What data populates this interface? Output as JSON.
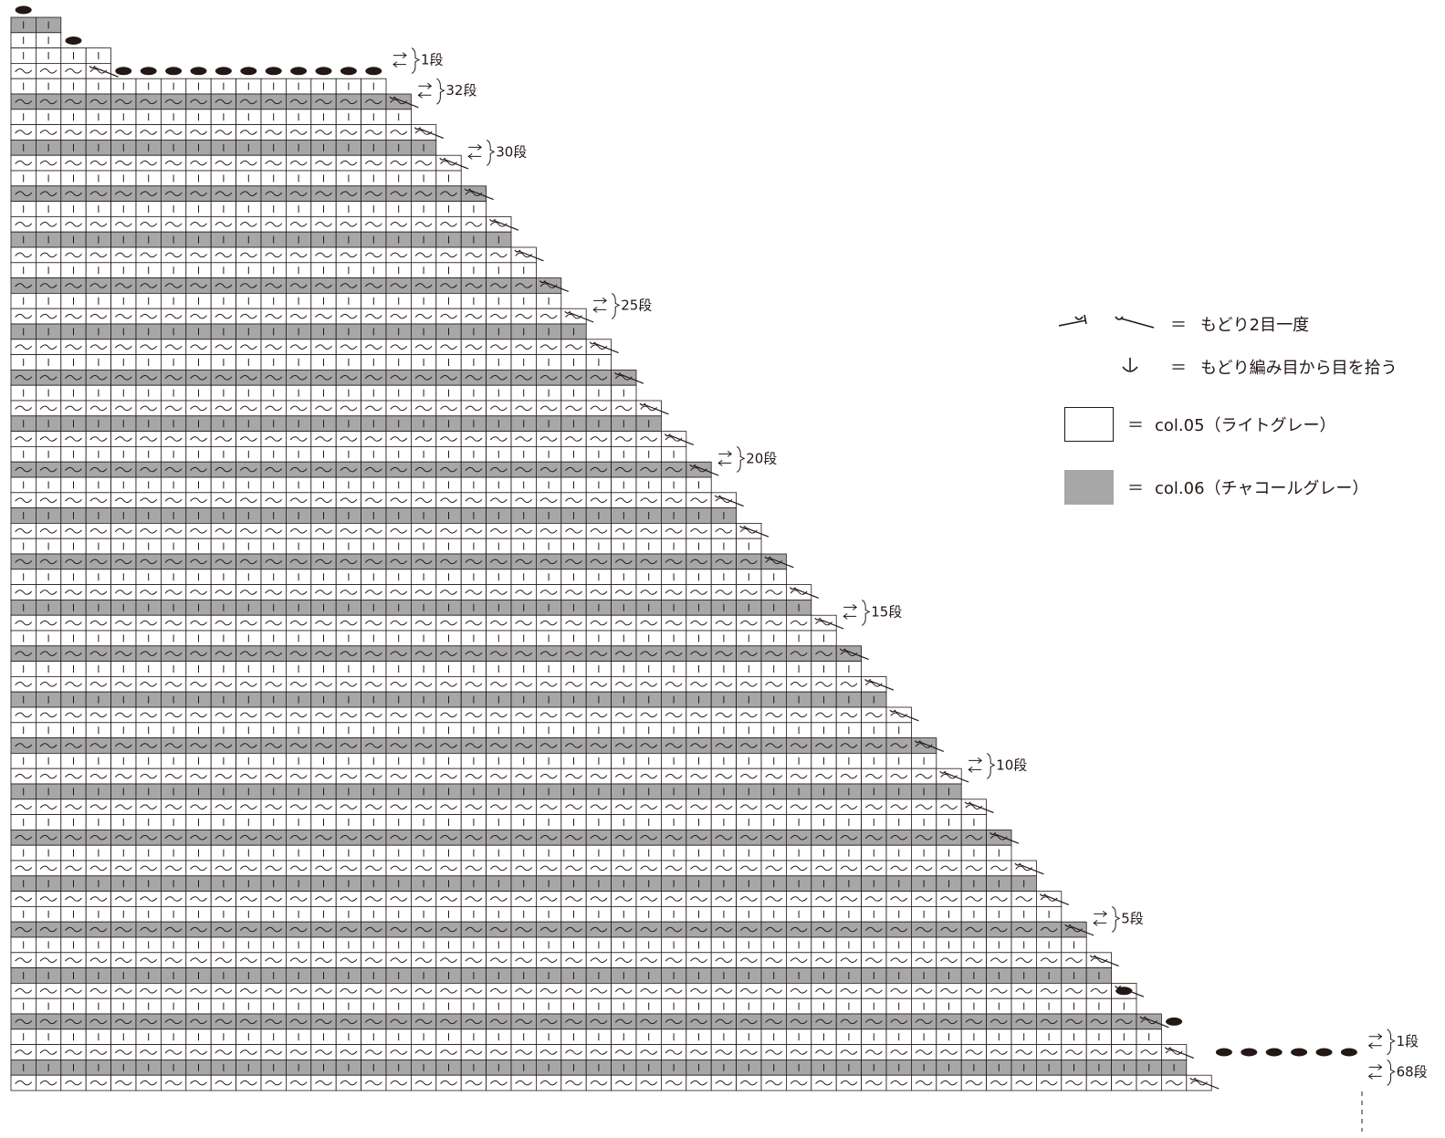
{
  "colors": {
    "light": "#ffffff",
    "dark": "#a7a7a8",
    "line": "#231815"
  },
  "row_labels": [
    "1段",
    "32段",
    "30段",
    "25段",
    "20段",
    "15段",
    "10段",
    "5段",
    "1段",
    "68段"
  ],
  "legend": {
    "decrease": {
      "eq": "＝",
      "text": "もどり2目一度"
    },
    "pickup": {
      "eq": "＝",
      "text": "もどり編み目から目を拾う"
    },
    "light": {
      "eq": "＝",
      "text": "col.05（ライトグレー）"
    },
    "dark": {
      "eq": "＝",
      "text": "col.06（チャコールグレー）"
    }
  }
}
